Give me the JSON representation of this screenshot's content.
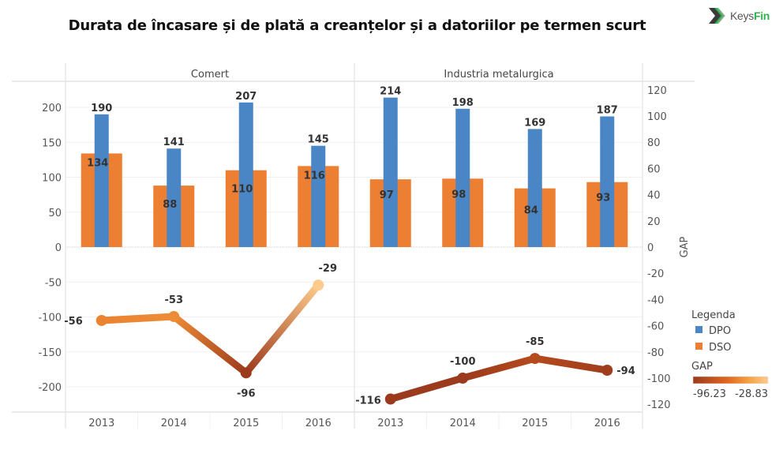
{
  "header": {
    "title": "Durata de încasare și de plată a creanțelor și a datoriilor pe termen scurt",
    "logo": {
      "icon": "chevron-logo-icon",
      "text_main": "Keys",
      "text_accent": "Fin",
      "accent_color": "#2fb34a"
    }
  },
  "chart_data": {
    "type": "bar",
    "title": "Durata de încasare și de plată a creanțelor și a datoriilor pe termen scurt",
    "panels": [
      "Comert",
      "Industria metalurgica"
    ],
    "categories": [
      "2013",
      "2014",
      "2015",
      "2016"
    ],
    "series": [
      {
        "name": "DPO",
        "type": "bar",
        "color": "#4a86c5",
        "values": {
          "Comert": [
            190,
            141,
            207,
            145
          ],
          "Industria metalurgica": [
            214,
            198,
            169,
            187
          ]
        }
      },
      {
        "name": "DSO",
        "type": "bar",
        "color": "#ed7f33",
        "values": {
          "Comert": [
            134,
            88,
            110,
            116
          ],
          "Industria metalurgica": [
            97,
            98,
            84,
            93
          ]
        }
      },
      {
        "name": "GAP",
        "type": "line",
        "axis": "right",
        "values": {
          "Comert": [
            -56,
            -53,
            -96,
            -29
          ],
          "Industria metalurgica": [
            -116,
            -100,
            -85,
            -94
          ]
        }
      }
    ],
    "left_axis": {
      "ticks": [
        200,
        150,
        100,
        50,
        0,
        -50,
        -100,
        -150,
        -200
      ],
      "range": [
        -235,
        235
      ]
    },
    "right_axis": {
      "label": "GAP",
      "ticks": [
        120,
        100,
        80,
        60,
        40,
        20,
        0,
        -20,
        -40,
        -60,
        -80,
        -100,
        -120
      ],
      "range": [
        -128,
        128
      ]
    },
    "legend": {
      "title": "Legenda",
      "placement": "right",
      "items": [
        {
          "label": "DPO",
          "color": "#4a86c5"
        },
        {
          "label": "DSO",
          "color": "#ed7f33"
        }
      ],
      "gradient": {
        "title": "GAP",
        "min_label": "-96.23",
        "max_label": "-28.83",
        "min": -96.23,
        "max": -28.83,
        "colors": [
          "#9b3a1c",
          "#e0661f",
          "#f5a245",
          "#fdcb8e"
        ]
      }
    },
    "grid": true
  }
}
